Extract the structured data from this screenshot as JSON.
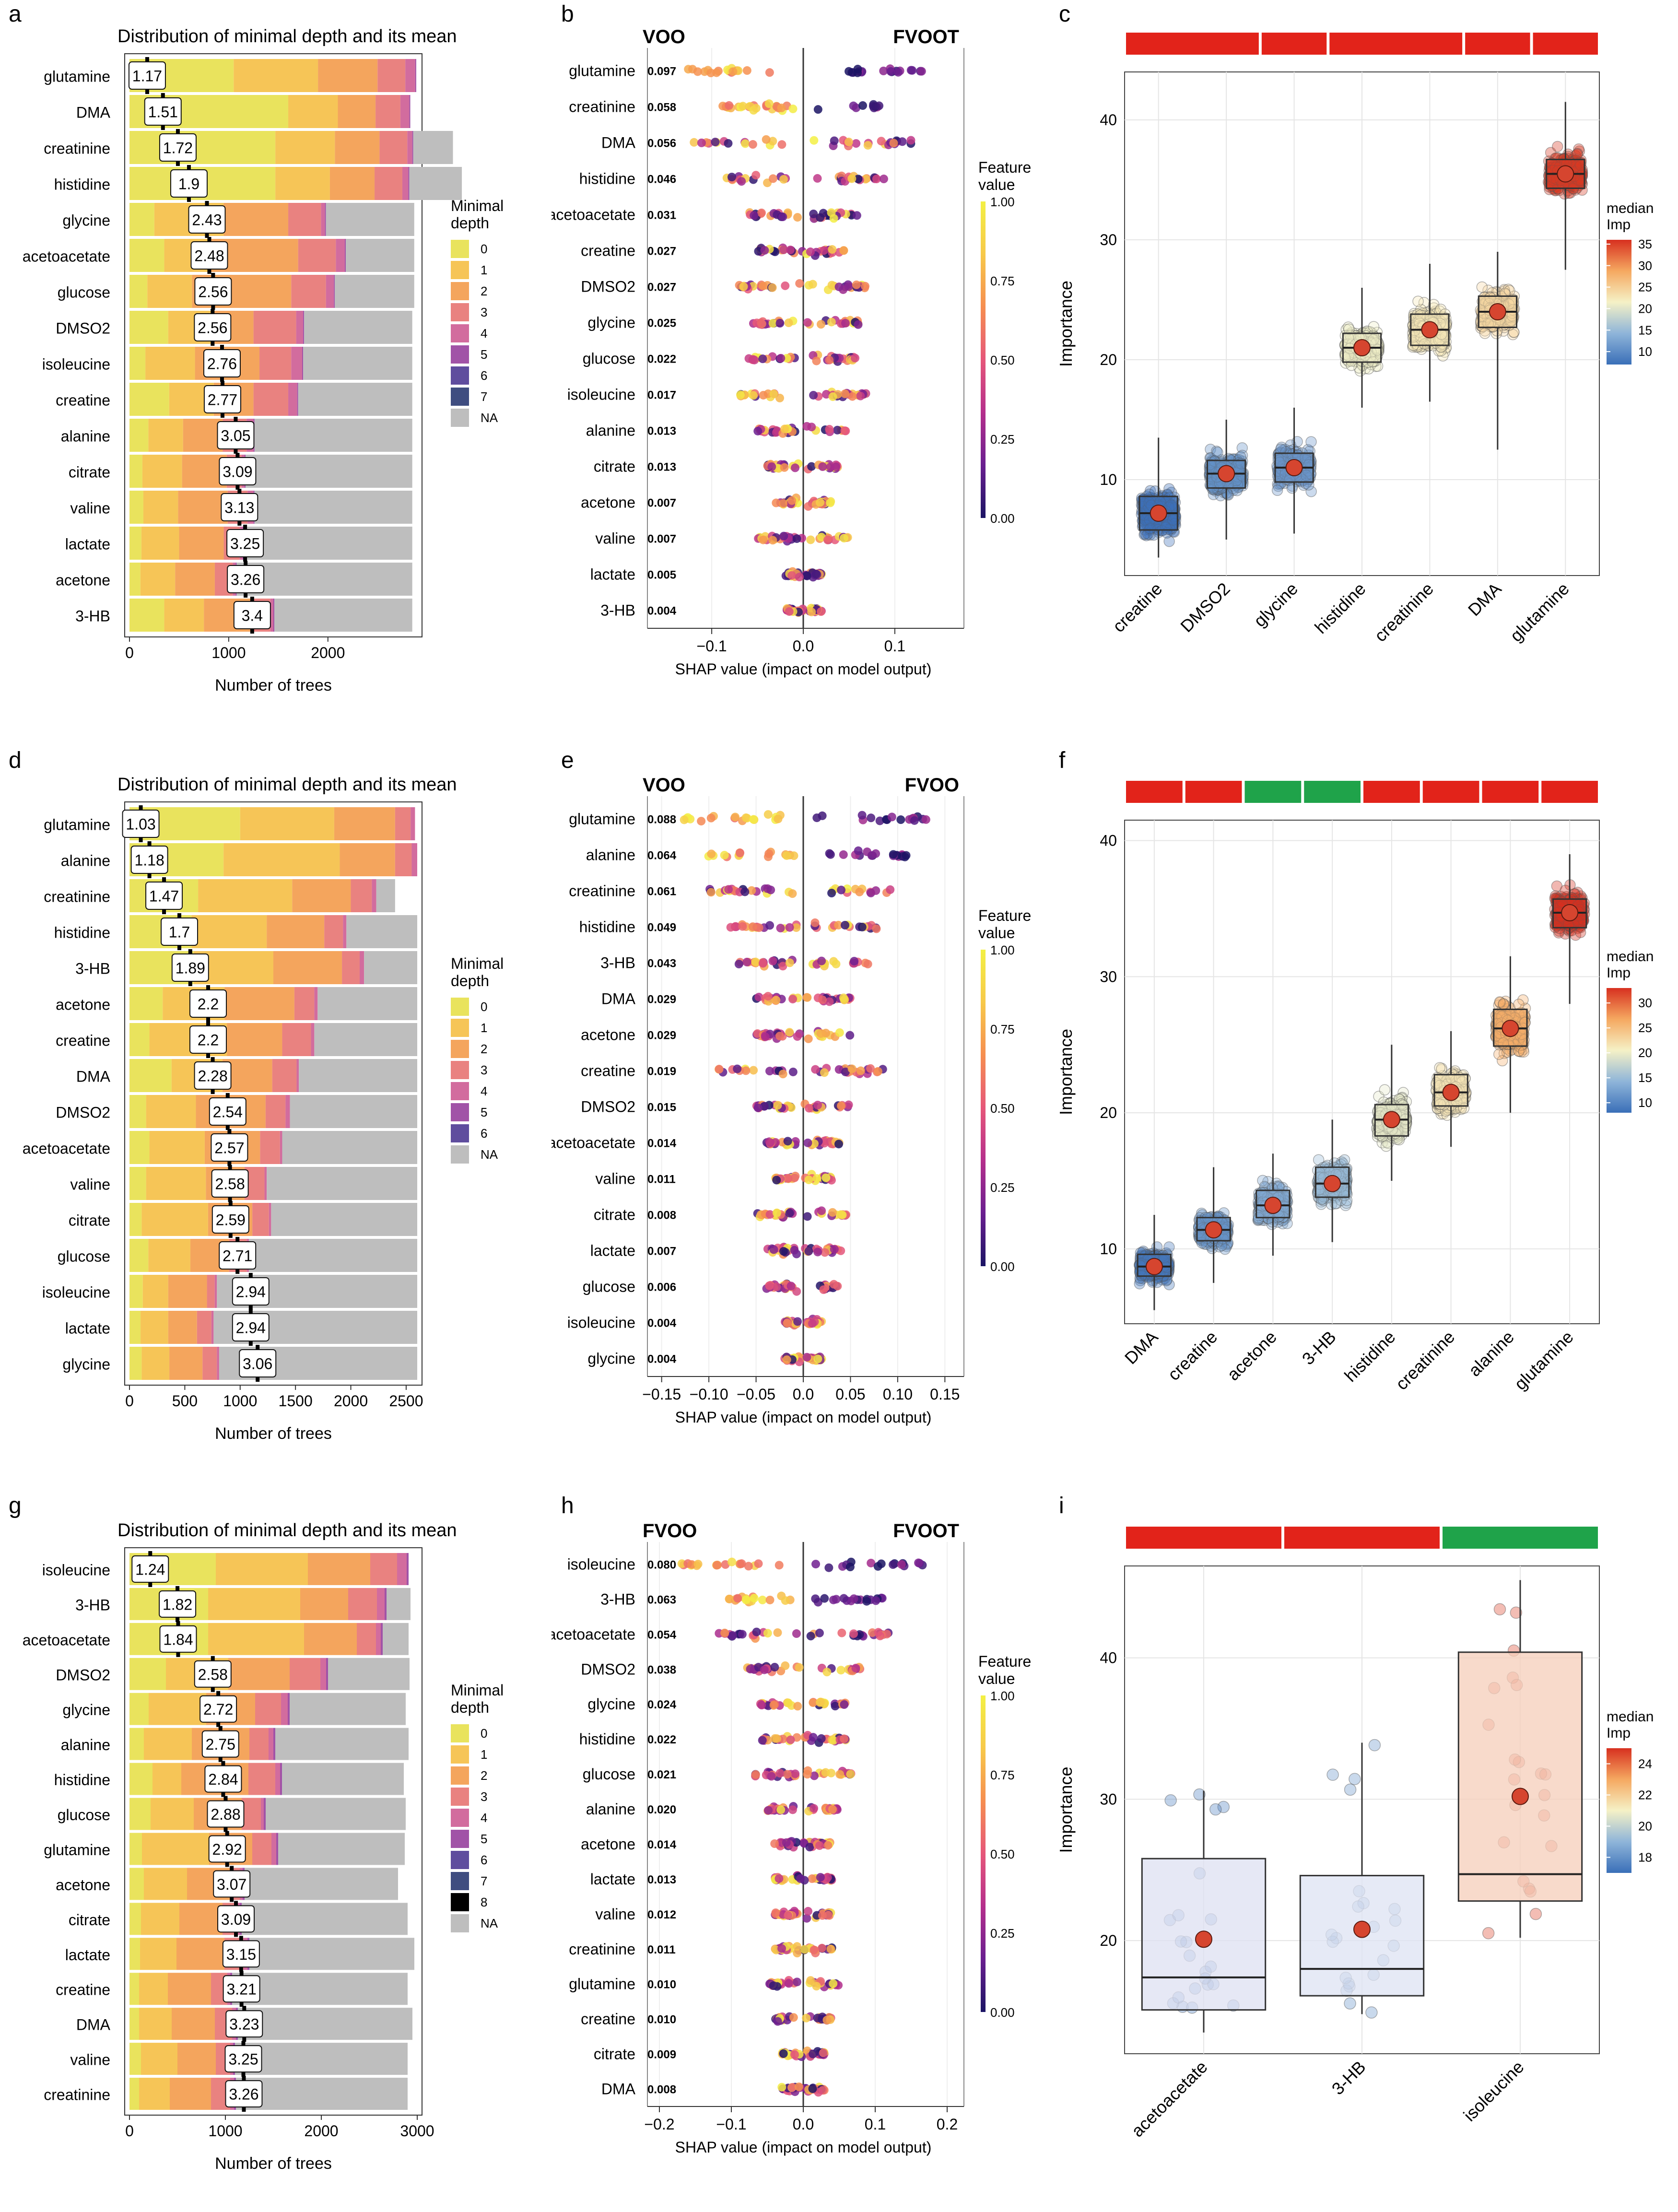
{
  "panel_labels": [
    "a",
    "b",
    "c",
    "d",
    "e",
    "f",
    "g",
    "h",
    "i"
  ],
  "depth_colors": [
    "#E9E35D",
    "#F6C557",
    "#F4A55D",
    "#E98280",
    "#D26C9E",
    "#A153A7",
    "#5F4D9E",
    "#3F4D80"
  ],
  "na_color": "#BEBEBE",
  "shap_palette": [
    "#1B1464",
    "#6A1F90",
    "#B52F8C",
    "#E6577A",
    "#F68E50",
    "#F7C94A",
    "#F3F044"
  ],
  "chart_data": [
    {
      "id": "a",
      "type": "bar",
      "stacked": true,
      "title": "Distribution of minimal depth and its mean",
      "xlabel": "Number of trees",
      "ylabel": "",
      "xlim": [
        0,
        2900
      ],
      "xticks": [
        0,
        1000,
        2000
      ],
      "legend_title": "Minimal\ndepth",
      "legend": [
        "0",
        "1",
        "2",
        "3",
        "4",
        "5",
        "6",
        "7",
        "NA"
      ],
      "categories": [
        "glutamine",
        "DMA",
        "creatinine",
        "histidine",
        "glycine",
        "acetoacetate",
        "glucose",
        "DMSO2",
        "isoleucine",
        "creatine",
        "alanine",
        "citrate",
        "valine",
        "lactate",
        "acetone",
        "3-HB"
      ],
      "means": [
        "1.17",
        "1.51",
        "1.72",
        "1.9",
        "2.43",
        "2.48",
        "2.56",
        "2.56",
        "2.76",
        "2.77",
        "3.05",
        "3.09",
        "3.13",
        "3.25",
        "3.26",
        "3.4"
      ],
      "series": [
        {
          "name": "0",
          "values": [
            1050,
            1600,
            1470,
            1470,
            250,
            350,
            180,
            390,
            160,
            400,
            190,
            130,
            140,
            120,
            110,
            350
          ]
        },
        {
          "name": "1",
          "values": [
            850,
            500,
            600,
            550,
            700,
            450,
            450,
            460,
            500,
            450,
            350,
            400,
            350,
            380,
            350,
            400
          ]
        },
        {
          "name": "2",
          "values": [
            600,
            380,
            450,
            450,
            650,
            900,
            1000,
            400,
            650,
            400,
            400,
            450,
            500,
            450,
            400,
            480
          ]
        },
        {
          "name": "3",
          "values": [
            280,
            250,
            280,
            280,
            330,
            380,
            350,
            430,
            320,
            350,
            240,
            150,
            200,
            160,
            180,
            190
          ]
        },
        {
          "name": "4",
          "values": [
            100,
            90,
            50,
            60,
            40,
            90,
            80,
            70,
            110,
            90,
            70,
            30,
            60,
            30,
            30,
            30
          ]
        },
        {
          "name": "5",
          "values": [
            10,
            10,
            10,
            10,
            10,
            10,
            10,
            10,
            10,
            10,
            10,
            10,
            10,
            10,
            10,
            10
          ]
        },
        {
          "name": "NA",
          "values": [
            0,
            0,
            400,
            530,
            890,
            690,
            800,
            1090,
            1100,
            1150,
            1590,
            1680,
            1590,
            1700,
            1770,
            1390
          ]
        }
      ]
    },
    {
      "id": "b",
      "type": "scatter",
      "subtype": "beeswarm",
      "left_label": "VOO",
      "right_label": "FVOOT",
      "xlabel": "SHAP value (impact on model output)",
      "xlim": [
        -0.165,
        0.165
      ],
      "xticks": [
        -0.1,
        0.0,
        0.1
      ],
      "colorbar_title": "Feature\nvalue",
      "colorbar_ticks": [
        "1.00",
        "0.75",
        "0.50",
        "0.25",
        "0.00"
      ],
      "features": [
        "glutamine",
        "creatinine",
        "DMA",
        "histidine",
        "acetoacetate",
        "creatine",
        "DMSO2",
        "glycine",
        "glucose",
        "isoleucine",
        "alanine",
        "citrate",
        "acetone",
        "valine",
        "lactate",
        "3-HB"
      ],
      "mean_abs": [
        "0.097",
        "0.058",
        "0.056",
        "0.046",
        "0.031",
        "0.027",
        "0.027",
        "0.025",
        "0.022",
        "0.017",
        "0.013",
        "0.013",
        "0.007",
        "0.007",
        "0.005",
        "0.004"
      ],
      "spread": [
        0.13,
        0.09,
        0.12,
        0.09,
        0.06,
        0.05,
        0.07,
        0.06,
        0.06,
        0.07,
        0.05,
        0.04,
        0.03,
        0.05,
        0.02,
        0.02
      ]
    },
    {
      "id": "c",
      "type": "scatter",
      "subtype": "box-jitter",
      "ylabel": "Importance",
      "ylim": [
        2,
        44
      ],
      "yticks": [
        10,
        20,
        30,
        40
      ],
      "categories": [
        "creatine",
        "DMSO2",
        "glycine",
        "histidine",
        "creatinine",
        "DMA",
        "glutamine"
      ],
      "medians": [
        7.2,
        10.5,
        11,
        21,
        22.5,
        24,
        35.5
      ],
      "q1": [
        5.8,
        9.3,
        9.8,
        19.8,
        21.2,
        22.7,
        34.3
      ],
      "q3": [
        8.6,
        11.6,
        12.2,
        22.2,
        23.8,
        25.3,
        36.7
      ],
      "lo": [
        3.5,
        5,
        5.5,
        16,
        16.5,
        12.5,
        27.5
      ],
      "hi": [
        13.5,
        15,
        16,
        26,
        28,
        29,
        41.5
      ],
      "top_bar": [
        "#E2231A",
        "#E2231A",
        "#E2231A",
        "#E2231A",
        "#E2231A",
        "#E2231A",
        "#E2231A"
      ],
      "top_bar_segments": [
        [
          0,
          2
        ],
        [
          2,
          3
        ],
        [
          3,
          5
        ],
        [
          5,
          6
        ],
        [
          6,
          7
        ]
      ],
      "legend_title": "median\nImp",
      "legend_ticks": [
        "35",
        "30",
        "25",
        "20",
        "15",
        "10"
      ],
      "legend_range": [
        7,
        36
      ]
    },
    {
      "id": "d",
      "type": "bar",
      "stacked": true,
      "title": "Distribution of minimal depth and its mean",
      "xlabel": "Number of trees",
      "xlim": [
        0,
        2600
      ],
      "xticks": [
        0,
        500,
        1000,
        1500,
        2000,
        2500
      ],
      "legend_title": "Minimal\ndepth",
      "legend": [
        "0",
        "1",
        "2",
        "3",
        "4",
        "5",
        "6",
        "NA"
      ],
      "categories": [
        "glutamine",
        "alanine",
        "creatinine",
        "histidine",
        "3-HB",
        "acetone",
        "creatine",
        "DMA",
        "DMSO2",
        "acetoacetate",
        "valine",
        "citrate",
        "glucose",
        "isoleucine",
        "lactate",
        "glycine"
      ],
      "means": [
        "1.03",
        "1.18",
        "1.47",
        "1.7",
        "1.89",
        "2.2",
        "2.2",
        "2.28",
        "2.54",
        "2.57",
        "2.58",
        "2.59",
        "2.71",
        "2.94",
        "2.94",
        "3.06"
      ],
      "series": [
        {
          "name": "0",
          "values": [
            1000,
            850,
            620,
            560,
            580,
            300,
            180,
            380,
            150,
            180,
            150,
            110,
            170,
            120,
            100,
            110
          ]
        },
        {
          "name": "1",
          "values": [
            850,
            1050,
            850,
            680,
            720,
            560,
            700,
            460,
            450,
            500,
            540,
            600,
            380,
            230,
            250,
            250
          ]
        },
        {
          "name": "2",
          "values": [
            550,
            500,
            530,
            520,
            620,
            630,
            500,
            450,
            630,
            500,
            350,
            400,
            350,
            350,
            260,
            300
          ]
        },
        {
          "name": "3",
          "values": [
            140,
            150,
            190,
            170,
            160,
            180,
            260,
            220,
            180,
            180,
            180,
            150,
            160,
            70,
            130,
            130
          ]
        },
        {
          "name": "4",
          "values": [
            40,
            50,
            40,
            30,
            40,
            30,
            30,
            20,
            40,
            20,
            20,
            20,
            20,
            20,
            20,
            20
          ]
        },
        {
          "name": "NA",
          "values": [
            0,
            0,
            170,
            640,
            480,
            900,
            930,
            1070,
            1150,
            1220,
            1360,
            1320,
            1520,
            1810,
            1840,
            1790
          ]
        }
      ]
    },
    {
      "id": "e",
      "type": "scatter",
      "subtype": "beeswarm",
      "left_label": "VOO",
      "right_label": "FVOO",
      "xlabel": "SHAP value (impact on model output)",
      "xlim": [
        -0.16,
        0.16
      ],
      "xticks": [
        -0.15,
        -0.1,
        -0.05,
        0.0,
        0.05,
        0.1,
        0.15
      ],
      "colorbar_title": "Feature\nvalue",
      "colorbar_ticks": [
        "1.00",
        "0.75",
        "0.50",
        "0.25",
        "0.00"
      ],
      "features": [
        "glutamine",
        "alanine",
        "creatinine",
        "histidine",
        "3-HB",
        "DMA",
        "acetone",
        "creatine",
        "DMSO2",
        "acetoacetate",
        "valine",
        "citrate",
        "lactate",
        "glucose",
        "isoleucine",
        "glycine"
      ],
      "mean_abs": [
        "0.088",
        "0.064",
        "0.061",
        "0.049",
        "0.043",
        "0.029",
        "0.029",
        "0.019",
        "0.015",
        "0.014",
        "0.011",
        "0.008",
        "0.007",
        "0.006",
        "0.004",
        "0.004"
      ],
      "spread": [
        0.13,
        0.11,
        0.1,
        0.08,
        0.07,
        0.05,
        0.05,
        0.09,
        0.05,
        0.04,
        0.03,
        0.05,
        0.04,
        0.04,
        0.02,
        0.02
      ]
    },
    {
      "id": "f",
      "type": "scatter",
      "subtype": "box-jitter",
      "ylabel": "Importance",
      "ylim": [
        4.5,
        41.5
      ],
      "yticks": [
        10,
        20,
        30,
        40
      ],
      "categories": [
        "DMA",
        "creatine",
        "acetone",
        "3-HB",
        "histidine",
        "creatinine",
        "alanine",
        "glutamine"
      ],
      "medians": [
        8.7,
        11.4,
        13.2,
        14.8,
        19.5,
        21.5,
        26.2,
        34.7
      ],
      "q1": [
        8,
        10.6,
        12.3,
        13.8,
        18.3,
        20.5,
        24.9,
        33.6
      ],
      "q3": [
        9.6,
        12.3,
        14.3,
        16,
        20.6,
        22.8,
        27.6,
        35.7
      ],
      "lo": [
        5.5,
        7.5,
        9.5,
        10.5,
        15,
        17.5,
        20,
        28
      ],
      "hi": [
        12.5,
        16,
        17,
        19.5,
        25,
        26,
        31.5,
        39
      ],
      "top_bar": [
        "#E2231A",
        "#E2231A",
        "#1FA34A",
        "#1FA34A",
        "#E2231A",
        "#E2231A",
        "#E2231A",
        "#E2231A"
      ],
      "top_bar_segments": [
        [
          0,
          1
        ],
        [
          1,
          2
        ],
        [
          2,
          3
        ],
        [
          3,
          4
        ],
        [
          4,
          5
        ],
        [
          5,
          6
        ],
        [
          6,
          7
        ],
        [
          7,
          8
        ]
      ],
      "legend_title": "median\nImp",
      "legend_ticks": [
        "30",
        "25",
        "20",
        "15",
        "10"
      ],
      "legend_range": [
        8,
        33
      ]
    },
    {
      "id": "g",
      "type": "bar",
      "stacked": true,
      "title": "Distribution of minimal depth and its mean",
      "xlabel": "Number of trees",
      "xlim": [
        0,
        3000
      ],
      "xticks": [
        0,
        1000,
        2000,
        3000
      ],
      "legend_title": "Minimal\ndepth",
      "legend": [
        "0",
        "1",
        "2",
        "3",
        "4",
        "5",
        "6",
        "7",
        "8",
        "NA"
      ],
      "categories": [
        "isoleucine",
        "3-HB",
        "acetoacetate",
        "DMSO2",
        "glycine",
        "alanine",
        "histidine",
        "glucose",
        "glutamine",
        "acetone",
        "citrate",
        "lactate",
        "creatine",
        "DMA",
        "valine",
        "creatinine"
      ],
      "means": [
        "1.24",
        "1.82",
        "1.84",
        "2.58",
        "2.72",
        "2.75",
        "2.84",
        "2.88",
        "2.92",
        "3.07",
        "3.09",
        "3.15",
        "3.21",
        "3.23",
        "3.25",
        "3.26"
      ],
      "series": [
        {
          "name": "0",
          "values": [
            900,
            820,
            820,
            380,
            200,
            150,
            240,
            220,
            130,
            150,
            120,
            110,
            100,
            100,
            120,
            100
          ]
        },
        {
          "name": "1",
          "values": [
            960,
            960,
            1000,
            650,
            600,
            500,
            300,
            450,
            700,
            450,
            400,
            380,
            300,
            340,
            380,
            320
          ]
        },
        {
          "name": "2",
          "values": [
            650,
            500,
            550,
            640,
            510,
            600,
            700,
            500,
            450,
            450,
            450,
            500,
            450,
            450,
            400,
            430
          ]
        },
        {
          "name": "3",
          "values": [
            280,
            300,
            200,
            320,
            270,
            200,
            280,
            200,
            200,
            100,
            150,
            200,
            170,
            180,
            150,
            200
          ]
        },
        {
          "name": "4",
          "values": [
            100,
            80,
            50,
            60,
            70,
            50,
            50,
            30,
            50,
            30,
            30,
            40,
            30,
            40,
            30,
            40
          ]
        },
        {
          "name": "5",
          "values": [
            20,
            20,
            20,
            20,
            20,
            20,
            20,
            20,
            20,
            20,
            20,
            20,
            20,
            20,
            20,
            20
          ]
        },
        {
          "name": "NA",
          "values": [
            0,
            250,
            270,
            850,
            1210,
            1390,
            1270,
            1460,
            1320,
            1600,
            1730,
            1720,
            1830,
            1820,
            1800,
            1790
          ]
        }
      ]
    },
    {
      "id": "h",
      "type": "scatter",
      "subtype": "beeswarm",
      "left_label": "FVOO",
      "right_label": "FVOOT",
      "xlabel": "SHAP value (impact on model output)",
      "xlim": [
        -0.21,
        0.21
      ],
      "xticks": [
        -0.2,
        -0.1,
        0.0,
        0.1,
        0.2
      ],
      "colorbar_title": "Feature\nvalue",
      "colorbar_ticks": [
        "1.00",
        "0.75",
        "0.50",
        "0.25",
        "0.00"
      ],
      "features": [
        "isoleucine",
        "3-HB",
        "acetoacetate",
        "DMSO2",
        "glycine",
        "histidine",
        "glucose",
        "alanine",
        "acetone",
        "lactate",
        "valine",
        "creatinine",
        "glutamine",
        "creatine",
        "citrate",
        "DMA"
      ],
      "mean_abs": [
        "0.080",
        "0.063",
        "0.054",
        "0.038",
        "0.024",
        "0.022",
        "0.021",
        "0.020",
        "0.014",
        "0.013",
        "0.012",
        "0.011",
        "0.010",
        "0.010",
        "0.009",
        "0.008"
      ],
      "spread": [
        0.17,
        0.11,
        0.12,
        0.08,
        0.06,
        0.06,
        0.07,
        0.05,
        0.04,
        0.04,
        0.04,
        0.04,
        0.05,
        0.04,
        0.03,
        0.03
      ]
    },
    {
      "id": "i",
      "type": "scatter",
      "subtype": "box-jitter",
      "ylabel": "Importance",
      "ylim": [
        12,
        46.5
      ],
      "yticks": [
        20,
        30,
        40
      ],
      "categories": [
        "acetoacetate",
        "3-HB",
        "isoleucine"
      ],
      "medians": [
        17.4,
        18,
        24.7
      ],
      "means": [
        20.1,
        20.8,
        30.2
      ],
      "q1": [
        15.1,
        16.1,
        22.8
      ],
      "q3": [
        25.8,
        24.6,
        40.4
      ],
      "lo": [
        13.5,
        14.8,
        20.2
      ],
      "hi": [
        30.6,
        34,
        45.5
      ],
      "box_fill": [
        "#DDE0F1",
        "#DDE3F3",
        "#F5CDB9"
      ],
      "top_bar": [
        "#E2231A",
        "#E2231A",
        "#1FA34A"
      ],
      "top_bar_segments": [
        [
          0,
          1
        ],
        [
          1,
          2
        ],
        [
          2,
          3
        ]
      ],
      "legend_title": "median\nImp",
      "legend_ticks": [
        "24",
        "22",
        "20",
        "18"
      ],
      "legend_range": [
        17,
        25
      ]
    }
  ]
}
